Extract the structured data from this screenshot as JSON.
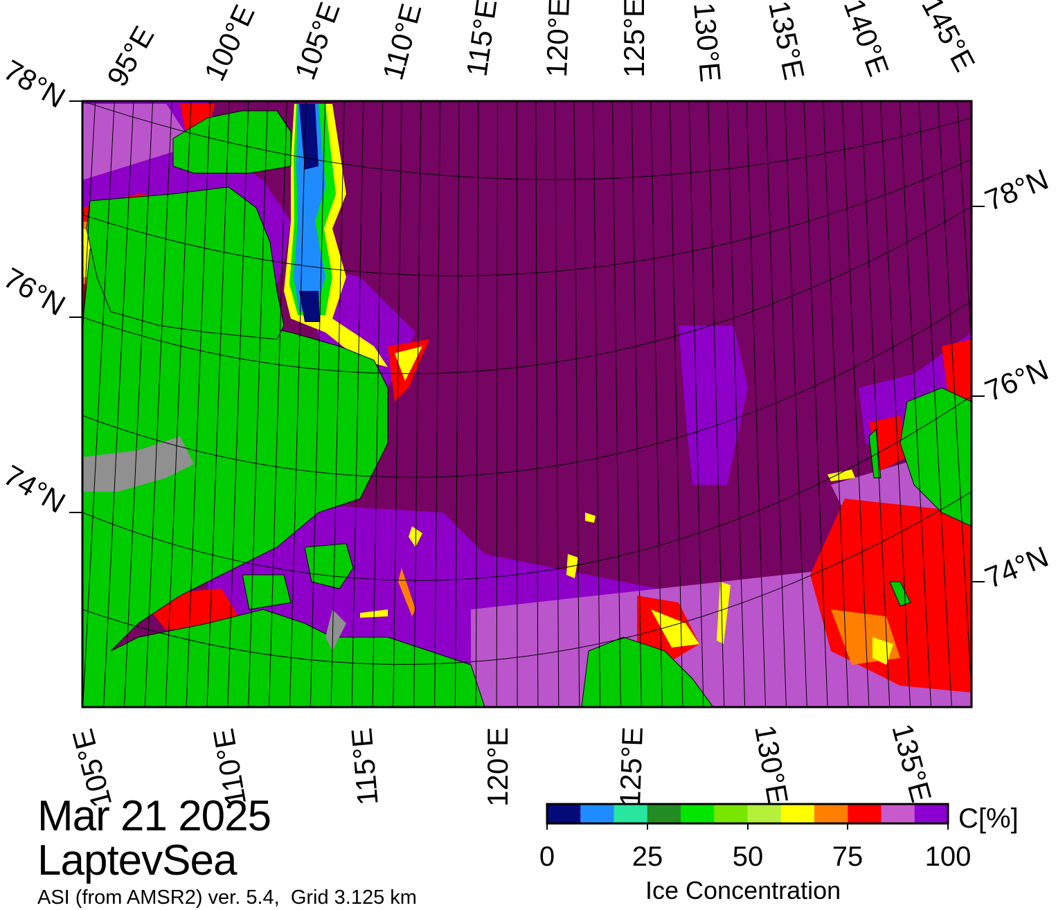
{
  "map": {
    "date": "Mar 21 2025",
    "region": "LaptevSea",
    "source": "ASI (from AMSR2) ver. 5.4,  Grid 3.125 km",
    "top_longitude_labels": [
      "95°E",
      "100°E",
      "105°E",
      "110°E",
      "115°E",
      "120°E",
      "125°E",
      "130°E",
      "135°E",
      "140°E",
      "145°E"
    ],
    "bottom_longitude_labels": [
      "105°E",
      "110°E",
      "115°E",
      "120°E",
      "125°E",
      "130°E",
      "135°E"
    ],
    "left_latitude_labels": [
      "78°N",
      "76°N",
      "74°N"
    ],
    "right_latitude_labels": [
      "78°N",
      "76°N",
      "74°N"
    ],
    "colors": {
      "open_water": "#0a0a7a",
      "land": "#00cc00",
      "coast_mask": "#909090",
      "ice_100": "#760462",
      "ice_95": "#8e00c8",
      "ice_90": "#bb55cc",
      "ice_85": "#ff0000",
      "ice_80": "#ff7f00",
      "ice_75": "#ffff00"
    }
  },
  "colorbar": {
    "title": "Ice Concentration",
    "unit": "C[%]",
    "ticks": [
      "0",
      "25",
      "50",
      "75",
      "100"
    ],
    "range": [
      0,
      100
    ],
    "colors": [
      "#050a7a",
      "#1e8cff",
      "#28e6a0",
      "#238c23",
      "#00e600",
      "#78e600",
      "#b4f03c",
      "#ffff00",
      "#ff7f00",
      "#ff0000",
      "#c85acd",
      "#8c00d2"
    ]
  }
}
